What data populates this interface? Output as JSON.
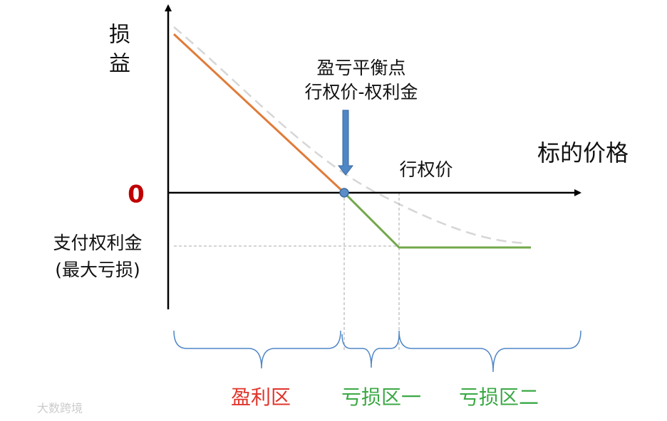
{
  "axes": {
    "y_label_1": "损",
    "y_label_2": "益",
    "x_label": "标的价格",
    "origin": "0"
  },
  "annotations": {
    "strike": "行权价",
    "breakeven_1": "盈亏平衡点",
    "breakeven_2": "行权价-权利金",
    "premium_1": "支付权利金",
    "premium_2": "(最大亏损)"
  },
  "zones": [
    "盈利区",
    "亏损区一",
    "亏损区二"
  ],
  "watermark": "大数跨境"
}
